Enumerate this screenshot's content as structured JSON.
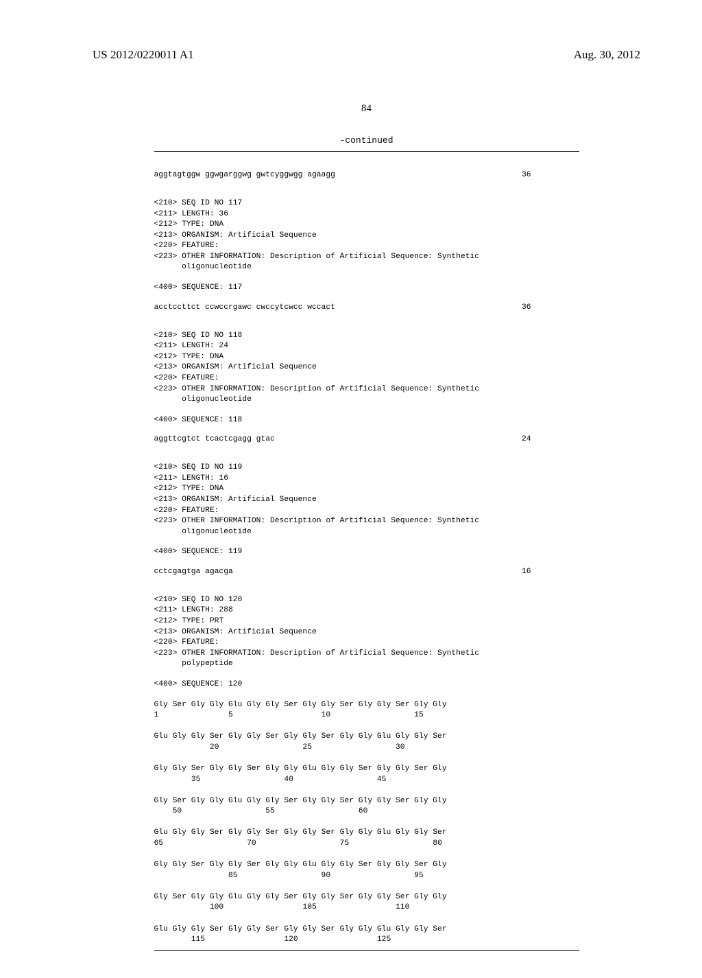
{
  "header": {
    "pub_number": "US 2012/0220011 A1",
    "pub_date": "Aug. 30, 2012"
  },
  "page_number": "84",
  "continued_label": "-continued",
  "seq0": {
    "text": "aggtagtggw ggwgarggwg gwtcyggwgg agaagg",
    "num": "36"
  },
  "entries": [
    {
      "header_lines": [
        "<210> SEQ ID NO 117",
        "<211> LENGTH: 36",
        "<212> TYPE: DNA",
        "<213> ORGANISM: Artificial Sequence",
        "<220> FEATURE:",
        "<223> OTHER INFORMATION: Description of Artificial Sequence: Synthetic",
        "      oligonucleotide"
      ],
      "seq_label": "<400> SEQUENCE: 117",
      "seq_text": "acctccttct ccwccrgawc cwccytcwcc wccact",
      "seq_num": "36"
    },
    {
      "header_lines": [
        "<210> SEQ ID NO 118",
        "<211> LENGTH: 24",
        "<212> TYPE: DNA",
        "<213> ORGANISM: Artificial Sequence",
        "<220> FEATURE:",
        "<223> OTHER INFORMATION: Description of Artificial Sequence: Synthetic",
        "      oligonucleotide"
      ],
      "seq_label": "<400> SEQUENCE: 118",
      "seq_text": "aggttcgtct tcactcgagg gtac",
      "seq_num": "24"
    },
    {
      "header_lines": [
        "<210> SEQ ID NO 119",
        "<211> LENGTH: 16",
        "<212> TYPE: DNA",
        "<213> ORGANISM: Artificial Sequence",
        "<220> FEATURE:",
        "<223> OTHER INFORMATION: Description of Artificial Sequence: Synthetic",
        "      oligonucleotide"
      ],
      "seq_label": "<400> SEQUENCE: 119",
      "seq_text": "cctcgagtga agacga",
      "seq_num": "16"
    }
  ],
  "seq120": {
    "header_lines": [
      "<210> SEQ ID NO 120",
      "<211> LENGTH: 288",
      "<212> TYPE: PRT",
      "<213> ORGANISM: Artificial Sequence",
      "<220> FEATURE:",
      "<223> OTHER INFORMATION: Description of Artificial Sequence: Synthetic",
      "      polypeptide"
    ],
    "seq_label": "<400> SEQUENCE: 120",
    "protein_lines": [
      "Gly Ser Gly Gly Glu Gly Gly Ser Gly Gly Ser Gly Gly Ser Gly Gly",
      "1               5                   10                  15",
      "",
      "Glu Gly Gly Ser Gly Gly Ser Gly Gly Ser Gly Gly Glu Gly Gly Ser",
      "            20                  25                  30",
      "",
      "Gly Gly Ser Gly Gly Ser Gly Gly Glu Gly Gly Ser Gly Gly Ser Gly",
      "        35                  40                  45",
      "",
      "Gly Ser Gly Gly Glu Gly Gly Ser Gly Gly Ser Gly Gly Ser Gly Gly",
      "    50                  55                  60",
      "",
      "Glu Gly Gly Ser Gly Gly Ser Gly Gly Ser Gly Gly Glu Gly Gly Ser",
      "65                  70                  75                  80",
      "",
      "Gly Gly Ser Gly Gly Ser Gly Gly Glu Gly Gly Ser Gly Gly Ser Gly",
      "                85                  90                  95",
      "",
      "Gly Ser Gly Gly Glu Gly Gly Ser Gly Gly Ser Gly Gly Ser Gly Gly",
      "            100                 105                 110",
      "",
      "Glu Gly Gly Ser Gly Gly Ser Gly Gly Ser Gly Gly Glu Gly Gly Ser",
      "        115                 120                 125"
    ]
  }
}
